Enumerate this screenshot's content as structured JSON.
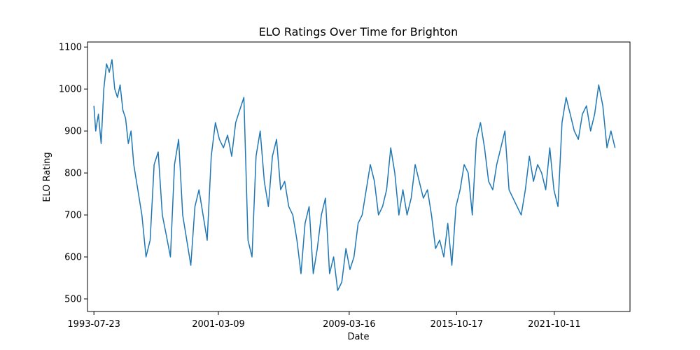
{
  "chart_data": {
    "type": "line",
    "title": "ELO Ratings Over Time for Brighton",
    "xlabel": "Date",
    "ylabel": "ELO Rating",
    "x_tick_labels": [
      "1993-07-23",
      "2001-03-09",
      "2009-03-16",
      "2015-10-17",
      "2021-10-11"
    ],
    "x_ticks": [
      "1993-07-23",
      "2001-03-09",
      "2009-03-16",
      "2015-10-17",
      "2021-10-11"
    ],
    "xlim": [
      "1993-03-01",
      "2026-06-01"
    ],
    "y_ticks": [
      500,
      600,
      700,
      800,
      900,
      1000,
      1100
    ],
    "ylim": [
      470,
      1112
    ],
    "grid": false,
    "color": "#1f77b4",
    "series": [
      {
        "x": [
          "1993-07-23",
          "1993-09-01",
          "1993-11-01",
          "1994-01-01",
          "1994-03-01",
          "1994-05-01",
          "1994-07-01",
          "1994-09-01",
          "1994-11-01",
          "1995-01-01",
          "1995-03-01",
          "1995-05-01",
          "1995-07-01",
          "1995-09-01",
          "1995-11-01",
          "1996-01-01",
          "1996-04-01",
          "1996-07-01",
          "1996-10-01",
          "1997-01-01",
          "1997-04-01",
          "1997-07-01",
          "1997-10-01",
          "1998-01-01",
          "1998-04-01",
          "1998-07-01",
          "1998-10-01",
          "1999-01-01",
          "1999-04-01",
          "1999-07-01",
          "1999-10-01",
          "2000-01-01",
          "2000-04-01",
          "2000-07-01",
          "2000-10-01",
          "2001-01-01",
          "2001-04-01",
          "2001-07-01",
          "2001-10-01",
          "2002-01-01",
          "2002-04-01",
          "2002-07-01",
          "2002-10-01",
          "2003-01-01",
          "2003-04-01",
          "2003-07-01",
          "2003-10-01",
          "2004-01-01",
          "2004-04-01",
          "2004-07-01",
          "2004-10-01",
          "2005-01-01",
          "2005-04-01",
          "2005-07-01",
          "2005-10-01",
          "2006-01-01",
          "2006-04-01",
          "2006-07-01",
          "2006-10-01",
          "2007-01-01",
          "2007-04-01",
          "2007-07-01",
          "2007-10-01",
          "2008-01-01",
          "2008-04-01",
          "2008-07-01",
          "2008-10-01",
          "2009-01-01",
          "2009-04-01",
          "2009-07-01",
          "2009-10-01",
          "2010-01-01",
          "2010-04-01",
          "2010-07-01",
          "2010-10-01",
          "2011-01-01",
          "2011-04-01",
          "2011-07-01",
          "2011-10-01",
          "2012-01-01",
          "2012-04-01",
          "2012-07-01",
          "2012-10-01",
          "2013-01-01",
          "2013-04-01",
          "2013-07-01",
          "2013-10-01",
          "2014-01-01",
          "2014-04-01",
          "2014-07-01",
          "2014-10-01",
          "2015-01-01",
          "2015-04-01",
          "2015-07-01",
          "2015-10-01",
          "2016-01-01",
          "2016-04-01",
          "2016-07-01",
          "2016-10-01",
          "2017-01-01",
          "2017-04-01",
          "2017-07-01",
          "2017-10-01",
          "2018-01-01",
          "2018-04-01",
          "2018-07-01",
          "2018-10-01",
          "2019-01-01",
          "2019-04-01",
          "2019-07-01",
          "2019-10-01",
          "2020-01-01",
          "2020-04-01",
          "2020-07-01",
          "2020-10-01",
          "2021-01-01",
          "2021-04-01",
          "2021-07-01",
          "2021-10-01",
          "2022-01-01",
          "2022-04-01",
          "2022-07-01",
          "2022-10-01",
          "2023-01-01",
          "2023-04-01",
          "2023-07-01",
          "2023-10-01",
          "2024-01-01",
          "2024-04-01",
          "2024-07-01",
          "2024-10-01",
          "2025-01-01",
          "2025-04-01",
          "2025-07-01"
        ],
        "y": [
          960,
          900,
          940,
          870,
          1000,
          1060,
          1040,
          1070,
          1000,
          980,
          1010,
          950,
          930,
          870,
          900,
          820,
          760,
          700,
          600,
          640,
          820,
          850,
          700,
          650,
          600,
          820,
          880,
          700,
          640,
          580,
          720,
          760,
          700,
          640,
          840,
          920,
          880,
          860,
          890,
          840,
          920,
          950,
          980,
          640,
          600,
          840,
          900,
          780,
          720,
          840,
          880,
          760,
          780,
          720,
          700,
          640,
          560,
          680,
          720,
          560,
          620,
          700,
          740,
          560,
          600,
          520,
          540,
          620,
          570,
          600,
          680,
          700,
          760,
          820,
          780,
          700,
          720,
          760,
          860,
          800,
          700,
          760,
          700,
          740,
          820,
          780,
          740,
          760,
          700,
          620,
          640,
          600,
          680,
          580,
          720,
          760,
          820,
          800,
          700,
          880,
          920,
          860,
          780,
          760,
          820,
          860,
          900,
          760,
          740,
          720,
          700,
          760,
          840,
          780,
          820,
          800,
          760,
          860,
          760,
          720,
          920,
          980,
          940,
          900,
          880,
          940,
          960,
          900,
          940,
          1010,
          960,
          860,
          900,
          860
        ]
      }
    ]
  }
}
